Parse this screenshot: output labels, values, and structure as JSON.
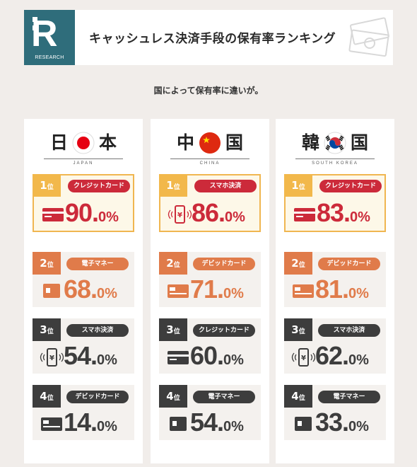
{
  "header": {
    "logo_letter": "R",
    "logo_text": "RESEARCH",
    "title": "キャッシュレス決済手段の保有率ランキング"
  },
  "subtitle": "国によって保有率に違いが。",
  "colors": {
    "rank1": "#cc2a3a",
    "rank1_badge": "#f2b84b",
    "rank2": "#e07b4a",
    "rank3_4": "#3d3d3d"
  },
  "chart_data": {
    "type": "table",
    "title": "キャッシュレス決済手段の保有率ランキング",
    "subtitle": "国によって保有率に違いが。",
    "unit": "%",
    "countries": [
      {
        "name_left": "日",
        "name_right": "本",
        "roman": "JAPAN",
        "flag": "japan-flag",
        "ranks": [
          {
            "rank": "1",
            "rank_suffix": "位",
            "method": "クレジットカード",
            "icon": "credit-card-icon",
            "value": "90.",
            "decimal": "0%"
          },
          {
            "rank": "2",
            "rank_suffix": "位",
            "method": "電子マネー",
            "icon": "ic-card-icon",
            "value": "68.",
            "decimal": "0%"
          },
          {
            "rank": "3",
            "rank_suffix": "位",
            "method": "スマホ決済",
            "icon": "smartphone-payment-icon",
            "value": "54.",
            "decimal": "0%"
          },
          {
            "rank": "4",
            "rank_suffix": "位",
            "method": "デビッドカード",
            "icon": "debit-card-icon",
            "value": "14.",
            "decimal": "0%"
          }
        ]
      },
      {
        "name_left": "中",
        "name_right": "国",
        "roman": "CHINA",
        "flag": "china-flag",
        "ranks": [
          {
            "rank": "1",
            "rank_suffix": "位",
            "method": "スマホ決済",
            "icon": "smartphone-payment-icon",
            "value": "86.",
            "decimal": "0%"
          },
          {
            "rank": "2",
            "rank_suffix": "位",
            "method": "デビッドカード",
            "icon": "debit-card-icon",
            "value": "71.",
            "decimal": "0%"
          },
          {
            "rank": "3",
            "rank_suffix": "位",
            "method": "クレジットカード",
            "icon": "credit-card-icon",
            "value": "60.",
            "decimal": "0%"
          },
          {
            "rank": "4",
            "rank_suffix": "位",
            "method": "電子マネー",
            "icon": "ic-card-icon",
            "value": "54.",
            "decimal": "0%"
          }
        ]
      },
      {
        "name_left": "韓",
        "name_right": "国",
        "roman": "SOUTH KOREA",
        "flag": "korea-flag",
        "ranks": [
          {
            "rank": "1",
            "rank_suffix": "位",
            "method": "クレジットカード",
            "icon": "credit-card-icon",
            "value": "83.",
            "decimal": "0%"
          },
          {
            "rank": "2",
            "rank_suffix": "位",
            "method": "デビッドカード",
            "icon": "debit-card-icon",
            "value": "81.",
            "decimal": "0%"
          },
          {
            "rank": "3",
            "rank_suffix": "位",
            "method": "スマホ決済",
            "icon": "smartphone-payment-icon",
            "value": "62.",
            "decimal": "0%"
          },
          {
            "rank": "4",
            "rank_suffix": "位",
            "method": "電子マネー",
            "icon": "ic-card-icon",
            "value": "33.",
            "decimal": "0%"
          }
        ]
      }
    ]
  }
}
